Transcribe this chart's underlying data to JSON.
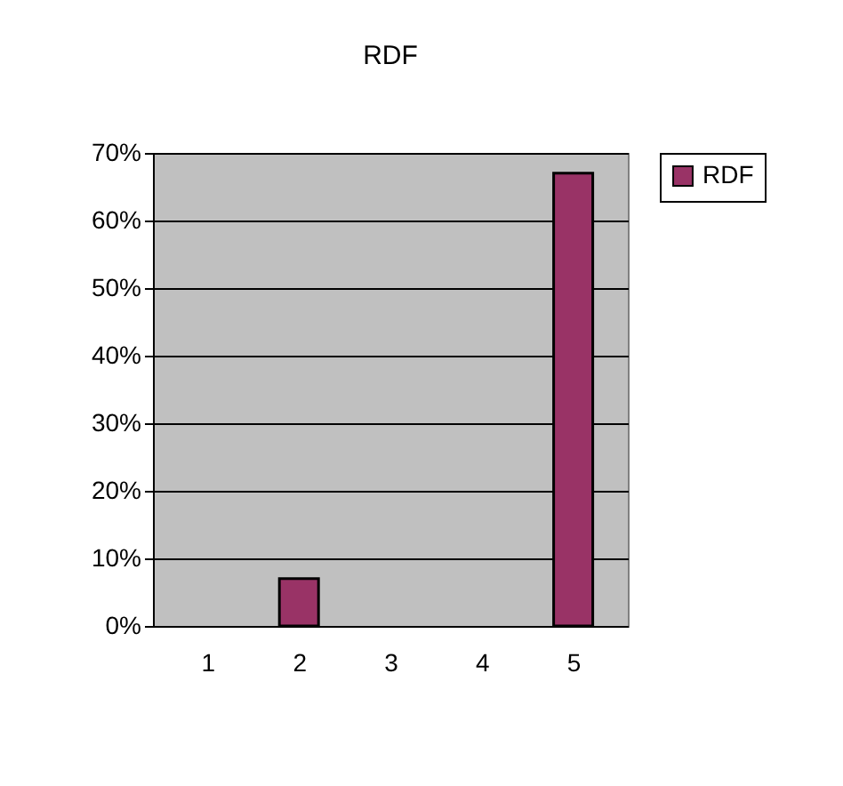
{
  "chart_data": {
    "type": "bar",
    "title": "RDF",
    "categories": [
      "1",
      "2",
      "3",
      "4",
      "5"
    ],
    "series": [
      {
        "name": "RDF",
        "color": "#993366",
        "values": [
          0,
          7,
          0,
          0,
          67
        ]
      }
    ],
    "ylim": [
      0,
      70
    ],
    "yticks": [
      {
        "value": 0,
        "label": "0%"
      },
      {
        "value": 10,
        "label": "10%"
      },
      {
        "value": 20,
        "label": "20%"
      },
      {
        "value": 30,
        "label": "30%"
      },
      {
        "value": 40,
        "label": "40%"
      },
      {
        "value": 50,
        "label": "50%"
      },
      {
        "value": 60,
        "label": "60%"
      },
      {
        "value": 70,
        "label": "70%"
      }
    ],
    "grid": "y",
    "legend": "right"
  }
}
